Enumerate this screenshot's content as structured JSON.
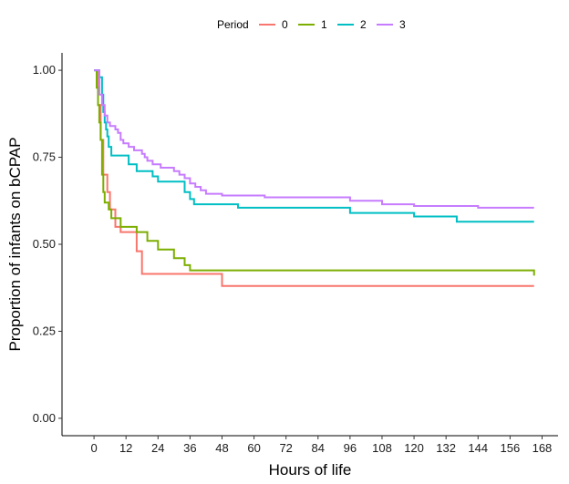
{
  "chart_data": {
    "type": "line",
    "step": true,
    "xlabel": "Hours of life",
    "ylabel": "Proportion of infants on bCPAP",
    "xlim": [
      -12,
      174
    ],
    "ylim": [
      -0.05,
      1.05
    ],
    "xticks": [
      0,
      12,
      24,
      36,
      48,
      60,
      72,
      84,
      96,
      108,
      120,
      132,
      144,
      156,
      168
    ],
    "yticks": [
      0.0,
      0.25,
      0.5,
      0.75,
      1.0
    ],
    "ytick_labels": [
      "0.00",
      "0.25",
      "0.50",
      "0.75",
      "1.00"
    ],
    "grid": false,
    "legend": {
      "title": "Period",
      "position": "top",
      "entries": [
        "0",
        "1",
        "2",
        "3"
      ]
    },
    "series": [
      {
        "name": "0",
        "color": "#F8766D",
        "points": [
          [
            0,
            1.0
          ],
          [
            1.5,
            0.9
          ],
          [
            2.5,
            0.8
          ],
          [
            3.5,
            0.7
          ],
          [
            5,
            0.65
          ],
          [
            6,
            0.6
          ],
          [
            8,
            0.55
          ],
          [
            10,
            0.535
          ],
          [
            16,
            0.48
          ],
          [
            18,
            0.415
          ],
          [
            48,
            0.38
          ],
          [
            165,
            0.38
          ]
        ]
      },
      {
        "name": "1",
        "color": "#7CAE00",
        "points": [
          [
            0,
            1.0
          ],
          [
            1,
            0.95
          ],
          [
            1.5,
            0.9
          ],
          [
            2,
            0.85
          ],
          [
            2.5,
            0.8
          ],
          [
            3,
            0.7
          ],
          [
            3.5,
            0.65
          ],
          [
            4,
            0.62
          ],
          [
            5.5,
            0.6
          ],
          [
            6.5,
            0.575
          ],
          [
            10,
            0.55
          ],
          [
            16,
            0.535
          ],
          [
            20,
            0.51
          ],
          [
            24,
            0.485
          ],
          [
            30,
            0.46
          ],
          [
            34,
            0.44
          ],
          [
            36,
            0.425
          ],
          [
            165,
            0.425
          ],
          [
            165,
            0.41
          ]
        ]
      },
      {
        "name": "2",
        "color": "#00BFC4",
        "points": [
          [
            0,
            1.0
          ],
          [
            2,
            0.98
          ],
          [
            3,
            0.93
          ],
          [
            3.5,
            0.88
          ],
          [
            4,
            0.85
          ],
          [
            4.5,
            0.83
          ],
          [
            5,
            0.81
          ],
          [
            5.5,
            0.78
          ],
          [
            6.5,
            0.755
          ],
          [
            13,
            0.73
          ],
          [
            16,
            0.71
          ],
          [
            22,
            0.695
          ],
          [
            24,
            0.68
          ],
          [
            34,
            0.65
          ],
          [
            36,
            0.63
          ],
          [
            37.5,
            0.615
          ],
          [
            54,
            0.605
          ],
          [
            96,
            0.59
          ],
          [
            120,
            0.58
          ],
          [
            136,
            0.565
          ],
          [
            165,
            0.565
          ]
        ]
      },
      {
        "name": "3",
        "color": "#C77CFF",
        "points": [
          [
            0,
            1.0
          ],
          [
            2,
            0.93
          ],
          [
            3,
            0.9
          ],
          [
            4,
            0.87
          ],
          [
            5,
            0.85
          ],
          [
            6,
            0.84
          ],
          [
            8,
            0.83
          ],
          [
            9,
            0.82
          ],
          [
            10,
            0.8
          ],
          [
            11,
            0.79
          ],
          [
            13,
            0.78
          ],
          [
            15,
            0.77
          ],
          [
            18,
            0.76
          ],
          [
            19,
            0.75
          ],
          [
            20,
            0.74
          ],
          [
            22,
            0.73
          ],
          [
            25,
            0.72
          ],
          [
            30,
            0.71
          ],
          [
            32,
            0.7
          ],
          [
            34,
            0.69
          ],
          [
            36,
            0.675
          ],
          [
            38,
            0.665
          ],
          [
            40,
            0.655
          ],
          [
            42,
            0.645
          ],
          [
            48,
            0.64
          ],
          [
            64,
            0.635
          ],
          [
            96,
            0.625
          ],
          [
            108,
            0.615
          ],
          [
            120,
            0.61
          ],
          [
            144,
            0.605
          ],
          [
            165,
            0.605
          ]
        ]
      }
    ]
  }
}
